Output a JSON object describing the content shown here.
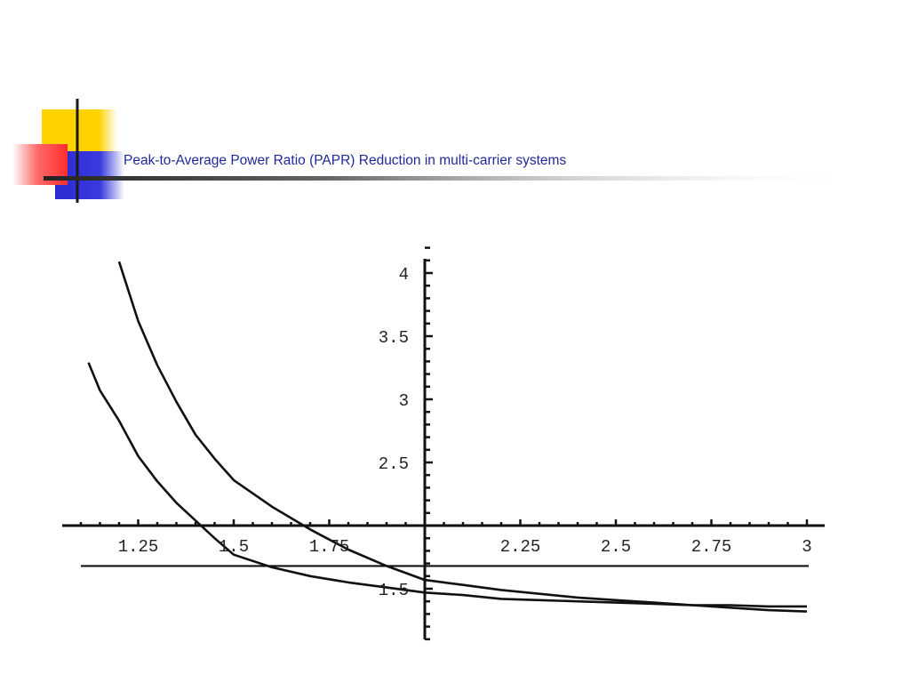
{
  "slide": {
    "title": "Peak-to-Average Power Ratio (PAPR) Reduction in multi-carrier systems"
  },
  "colors": {
    "title_text": "#1f2a99",
    "deco_yellow": "#ffd200",
    "deco_red": "#ff3b3b",
    "deco_blue": "#2a2ad0",
    "ink": "#111111"
  },
  "chart_data": {
    "type": "line",
    "title": "",
    "xlabel": "",
    "ylabel": "",
    "grid": false,
    "legend": "none",
    "xlim": [
      1.05,
      3.1
    ],
    "ylim": [
      1.0,
      4.2
    ],
    "x_axis_crosses_y_at": 2.0,
    "y_axis_crosses_x_at": 2.0,
    "x_ticks": [
      {
        "value": 1.25,
        "label": "1.25"
      },
      {
        "value": 1.5,
        "label": "1.5"
      },
      {
        "value": 1.75,
        "label": "1.75"
      },
      {
        "value": 2.25,
        "label": "2.25"
      },
      {
        "value": 2.5,
        "label": "2.5"
      },
      {
        "value": 2.75,
        "label": "2.75"
      },
      {
        "value": 3.0,
        "label": "3"
      }
    ],
    "y_ticks": [
      {
        "value": 1.5,
        "label": "1.5"
      },
      {
        "value": 2.5,
        "label": "2.5"
      },
      {
        "value": 3.0,
        "label": "3"
      },
      {
        "value": 3.5,
        "label": "3.5"
      },
      {
        "value": 4.0,
        "label": "4"
      }
    ],
    "reference_lines": [
      {
        "y": 1.68
      }
    ],
    "series": [
      {
        "x": [
          1.2,
          1.25,
          1.3,
          1.35,
          1.4,
          1.45,
          1.5,
          1.6,
          1.7,
          1.8,
          1.9,
          2.0,
          2.1,
          2.2,
          2.3,
          2.4,
          2.5,
          2.6,
          2.7,
          2.8,
          2.9,
          3.0
        ],
        "y": [
          4.09,
          3.62,
          3.27,
          2.98,
          2.72,
          2.53,
          2.36,
          2.15,
          1.97,
          1.81,
          1.68,
          1.57,
          1.53,
          1.49,
          1.46,
          1.43,
          1.41,
          1.39,
          1.37,
          1.35,
          1.33,
          1.32
        ]
      },
      {
        "x": [
          1.12,
          1.15,
          1.2,
          1.25,
          1.3,
          1.35,
          1.4,
          1.45,
          1.5,
          1.6,
          1.7,
          1.8,
          1.9,
          2.0,
          2.1,
          2.2,
          2.3,
          2.4,
          2.5,
          2.6,
          2.7,
          2.8,
          2.9,
          3.0
        ],
        "y": [
          3.29,
          3.07,
          2.83,
          2.55,
          2.35,
          2.18,
          2.04,
          1.9,
          1.77,
          1.67,
          1.6,
          1.55,
          1.51,
          1.47,
          1.45,
          1.42,
          1.41,
          1.4,
          1.39,
          1.38,
          1.37,
          1.37,
          1.36,
          1.36
        ]
      }
    ]
  }
}
